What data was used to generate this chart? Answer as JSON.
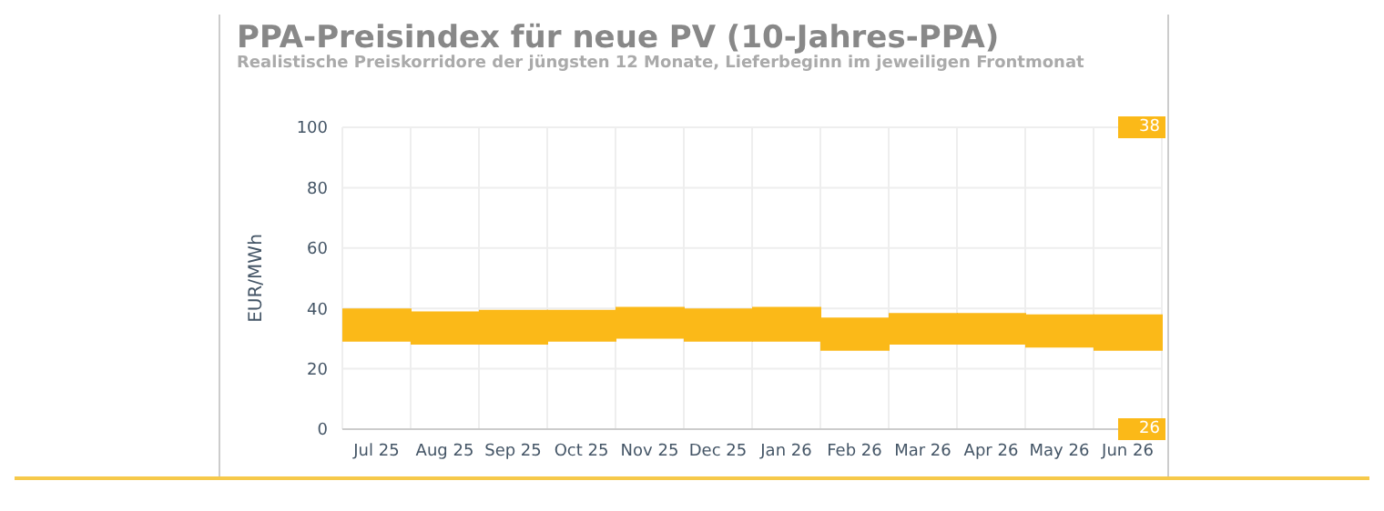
{
  "chart_data": {
    "type": "bar",
    "title": "PPA-Preisindex für neue PV (10-Jahres-PPA)",
    "subtitle": "Realistische Preiskorridore der jüngsten 12 Monate, Lieferbeginn im jeweiligen Frontmonat",
    "ylabel": "EUR/MWh",
    "categories": [
      "Jul 25",
      "Aug 25",
      "Sep 25",
      "Oct 25",
      "Nov 25",
      "Dec 25",
      "Jan 26",
      "Feb 26",
      "Mar 26",
      "Apr 26",
      "May 26",
      "Jun 26"
    ],
    "base": [
      29,
      28,
      28,
      29,
      30,
      29,
      29,
      26,
      28,
      28,
      27,
      26
    ],
    "values": [
      11,
      11,
      11.5,
      10.5,
      10.5,
      11,
      11.5,
      11,
      10.5,
      10.5,
      11,
      12
    ],
    "color": "#fbb918",
    "ylim": [
      0,
      100
    ],
    "yticks": [
      0,
      20,
      40,
      60,
      80,
      100
    ],
    "grid": true,
    "annotations": [
      "38",
      "26"
    ]
  }
}
